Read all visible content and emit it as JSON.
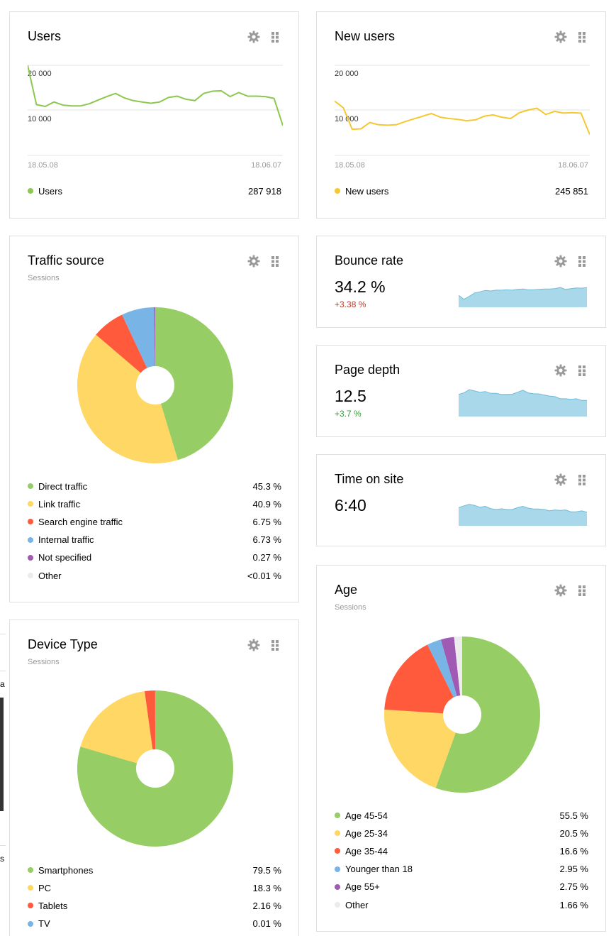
{
  "colors": {
    "green": "#96cd64",
    "yellow": "#ffd764",
    "red": "#ff5a3c",
    "blue": "#78b4e6",
    "purple": "#a05ab4",
    "grey": "#ececec",
    "line_users": "#8cc850",
    "line_new_users": "#f5c832",
    "spark_fill": "#a8d8ea",
    "spark_line": "#6fbcd8",
    "delta_bad": "#c0392b",
    "delta_good": "#3a9a3a"
  },
  "users": {
    "title": "Users",
    "y_ticks": [
      "20 000",
      "10 000"
    ],
    "date_start": "18.05.08",
    "date_end": "18.06.07",
    "legend_label": "Users",
    "legend_value": "287 918"
  },
  "new_users": {
    "title": "New users",
    "y_ticks": [
      "20 000",
      "10 000"
    ],
    "date_start": "18.05.08",
    "date_end": "18.06.07",
    "legend_label": "New users",
    "legend_value": "245 851"
  },
  "traffic_source": {
    "title": "Traffic source",
    "subtitle": "Sessions",
    "legend": [
      {
        "label": "Direct traffic",
        "value": "45.3 %"
      },
      {
        "label": "Link traffic",
        "value": "40.9 %"
      },
      {
        "label": "Search engine traffic",
        "value": "6.75 %"
      },
      {
        "label": "Internal traffic",
        "value": "6.73 %"
      },
      {
        "label": "Not specified",
        "value": "0.27 %"
      },
      {
        "label": "Other",
        "value": "<0.01 %"
      }
    ]
  },
  "bounce_rate": {
    "title": "Bounce rate",
    "value": "34.2 %",
    "delta": "+3.38 %"
  },
  "page_depth": {
    "title": "Page depth",
    "value": "12.5",
    "delta": "+3.7 %"
  },
  "time_on_site": {
    "title": "Time on site",
    "value": "6:40"
  },
  "device_type": {
    "title": "Device Type",
    "subtitle": "Sessions",
    "legend": [
      {
        "label": "Smartphones",
        "value": "79.5 %"
      },
      {
        "label": "PC",
        "value": "18.3 %"
      },
      {
        "label": "Tablets",
        "value": "2.16 %"
      },
      {
        "label": "TV",
        "value": "0.01 %"
      }
    ]
  },
  "age": {
    "title": "Age",
    "subtitle": "Sessions",
    "legend": [
      {
        "label": "Age 45-54",
        "value": "55.5 %"
      },
      {
        "label": "Age 25-34",
        "value": "20.5 %"
      },
      {
        "label": "Age 35-44",
        "value": "16.6 %"
      },
      {
        "label": "Younger than 18",
        "value": "2.95 %"
      },
      {
        "label": "Age 55+",
        "value": "2.75 %"
      },
      {
        "label": "Other",
        "value": "1.66 %"
      }
    ]
  },
  "edge_fragment": {
    "text_a": "a",
    "text_s": "s"
  },
  "chart_data": [
    {
      "type": "line",
      "series": [
        {
          "name": "Users",
          "values": [
            20000,
            11200,
            10800,
            11800,
            11100,
            10900,
            10900,
            11400,
            12200,
            13000,
            13700,
            12700,
            12100,
            11800,
            11500,
            11800,
            12800,
            13100,
            12400,
            12100,
            13700,
            14200,
            14300,
            13000,
            13900,
            13100,
            13100,
            13000,
            12600,
            6500
          ]
        }
      ],
      "ylim": [
        0,
        22000
      ]
    },
    {
      "type": "line",
      "series": [
        {
          "name": "New users",
          "values": [
            12000,
            10500,
            5700,
            5800,
            7200,
            6700,
            6600,
            6700,
            7400,
            8000,
            8600,
            9200,
            8400,
            8100,
            7900,
            7600,
            7800,
            8600,
            8900,
            8400,
            8100,
            9400,
            10000,
            10400,
            9000,
            9700,
            9300,
            9400,
            9300,
            4500
          ]
        }
      ],
      "ylim": [
        0,
        22000
      ]
    },
    {
      "type": "pie",
      "categories": [
        "Direct traffic",
        "Link traffic",
        "Search engine traffic",
        "Internal traffic",
        "Not specified",
        "Other"
      ],
      "values": [
        45.3,
        40.9,
        6.75,
        6.73,
        0.27,
        0.01
      ]
    },
    {
      "type": "area",
      "series": [
        {
          "name": "Bounce rate",
          "values": [
            0.6,
            0.4,
            0.55,
            0.72,
            0.78,
            0.85,
            0.82,
            0.86,
            0.86,
            0.88,
            0.86,
            0.9,
            0.92,
            0.88,
            0.88,
            0.9,
            0.92,
            0.92,
            0.94,
            1.0,
            0.9,
            0.94,
            0.97,
            0.96,
            0.99
          ]
        }
      ]
    },
    {
      "type": "area",
      "series": [
        {
          "name": "Page depth",
          "values": [
            0.82,
            0.88,
            1.0,
            0.95,
            0.9,
            0.93,
            0.86,
            0.86,
            0.82,
            0.82,
            0.83,
            0.9,
            0.98,
            0.88,
            0.85,
            0.84,
            0.8,
            0.76,
            0.74,
            0.66,
            0.66,
            0.64,
            0.66,
            0.6,
            0.6
          ]
        }
      ]
    },
    {
      "type": "area",
      "series": [
        {
          "name": "Time on site",
          "values": [
            0.8,
            0.88,
            0.95,
            0.9,
            0.82,
            0.86,
            0.76,
            0.72,
            0.75,
            0.72,
            0.72,
            0.8,
            0.86,
            0.78,
            0.74,
            0.74,
            0.72,
            0.66,
            0.7,
            0.68,
            0.7,
            0.62,
            0.62,
            0.66,
            0.6
          ]
        }
      ]
    },
    {
      "type": "pie",
      "categories": [
        "Smartphones",
        "PC",
        "Tablets",
        "TV"
      ],
      "values": [
        79.5,
        18.3,
        2.16,
        0.01
      ]
    },
    {
      "type": "pie",
      "categories": [
        "Age 45-54",
        "Age 25-34",
        "Age 35-44",
        "Younger than 18",
        "Age 55+",
        "Other"
      ],
      "values": [
        55.5,
        20.5,
        16.6,
        2.95,
        2.75,
        1.66
      ]
    }
  ]
}
